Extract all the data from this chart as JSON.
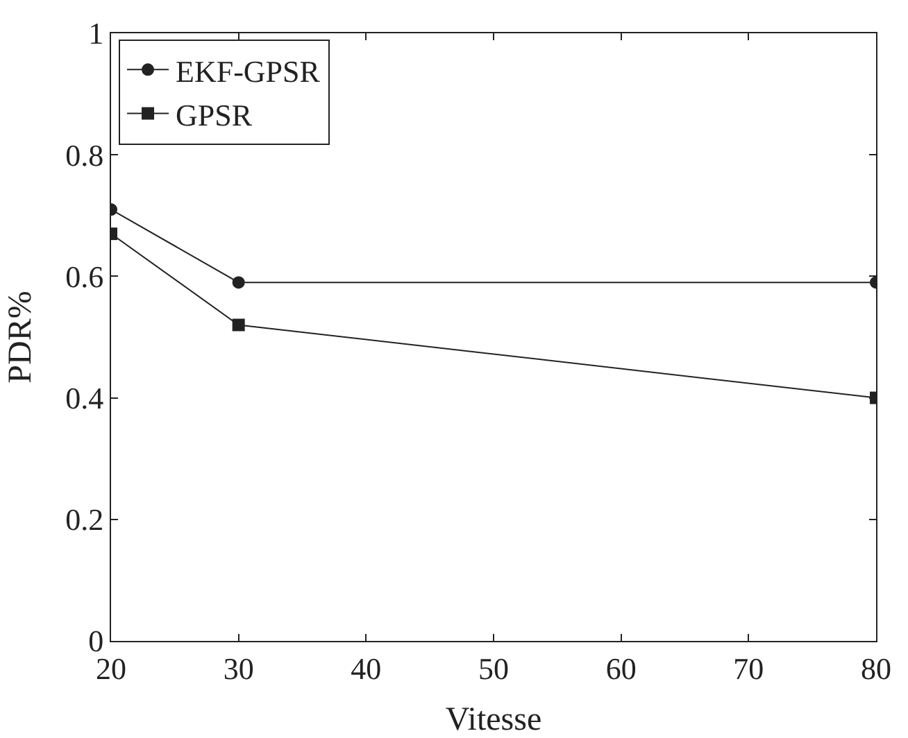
{
  "chart_data": {
    "type": "line",
    "xlabel": "Vitesse",
    "ylabel": "PDR%",
    "x": [
      20,
      30,
      80
    ],
    "series": [
      {
        "name": "EKF-GPSR",
        "color": "#222222",
        "marker": "circle",
        "values": [
          0.71,
          0.59,
          0.59
        ]
      },
      {
        "name": "GPSR",
        "color": "#222222",
        "marker": "square",
        "values": [
          0.67,
          0.52,
          0.4
        ]
      }
    ],
    "xlim": [
      20,
      80
    ],
    "xticks": [
      20,
      30,
      40,
      50,
      60,
      70,
      80
    ],
    "ylim": [
      0,
      1
    ],
    "yticks": [
      0,
      0.2,
      0.4,
      0.6,
      0.8,
      1
    ],
    "grid": false,
    "legend": "top left",
    "line_style": "solid"
  }
}
